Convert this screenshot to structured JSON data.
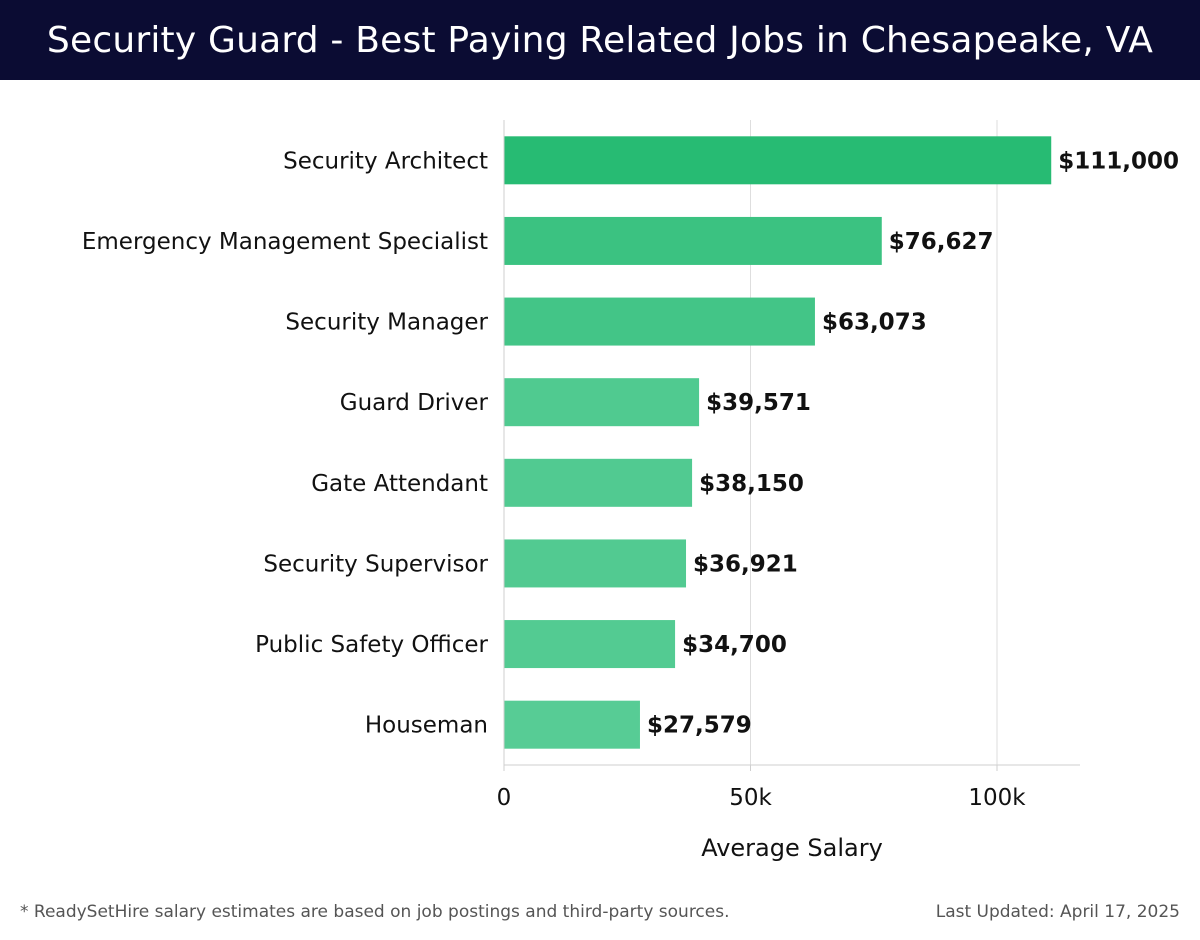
{
  "header": {
    "title": "Security Guard - Best Paying Related Jobs in Chesapeake, VA"
  },
  "footer": {
    "note": "* ReadySetHire salary estimates are based on job postings and third-party sources.",
    "updated": "Last Updated: April 17, 2025"
  },
  "colors": {
    "header_bg": "#0b0c33",
    "bar_max": "#27bb73",
    "bar_min": "#57cc95"
  },
  "chart_data": {
    "type": "bar",
    "orientation": "horizontal",
    "categories": [
      "Security Architect",
      "Emergency Management Specialist",
      "Security Manager",
      "Guard Driver",
      "Gate Attendant",
      "Security Supervisor",
      "Public Safety Officer",
      "Houseman"
    ],
    "values": [
      111000,
      76627,
      63073,
      39571,
      38150,
      36921,
      34700,
      27579
    ],
    "value_labels": [
      "$111,000",
      "$76,627",
      "$63,073",
      "$39,571",
      "$38,150",
      "$36,921",
      "$34,700",
      "$27,579"
    ],
    "xlabel": "Average Salary",
    "ylabel": "",
    "xlim": [
      0,
      117000
    ],
    "xticks": [
      0,
      50000,
      100000
    ],
    "xtick_labels": [
      "0",
      "50k",
      "100k"
    ],
    "grid": true
  }
}
